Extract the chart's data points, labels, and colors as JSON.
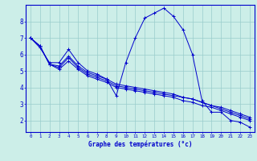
{
  "xlabel": "Graphe des températures (°c)",
  "background_color": "#cceee8",
  "grid_color": "#99cccc",
  "line_color": "#0000cc",
  "xlim": [
    -0.5,
    23.5
  ],
  "ylim": [
    1.3,
    9.0
  ],
  "xticks": [
    0,
    1,
    2,
    3,
    4,
    5,
    6,
    7,
    8,
    9,
    10,
    11,
    12,
    13,
    14,
    15,
    16,
    17,
    18,
    19,
    20,
    21,
    22,
    23
  ],
  "yticks": [
    2,
    3,
    4,
    5,
    6,
    7,
    8
  ],
  "series": [
    [
      7.0,
      6.4,
      5.5,
      5.5,
      6.3,
      5.5,
      5.0,
      4.8,
      4.5,
      3.5,
      5.5,
      7.0,
      8.2,
      8.5,
      8.8,
      8.3,
      7.5,
      6.0,
      3.2,
      2.5,
      2.5,
      2.0,
      1.9,
      1.6
    ],
    [
      7.0,
      6.5,
      5.4,
      5.2,
      5.8,
      5.2,
      4.8,
      4.6,
      4.4,
      4.1,
      4.0,
      3.9,
      3.8,
      3.7,
      3.6,
      3.5,
      3.4,
      3.3,
      3.1,
      2.9,
      2.7,
      2.5,
      2.3,
      2.1
    ],
    [
      7.0,
      6.5,
      5.4,
      5.3,
      5.9,
      5.3,
      4.9,
      4.7,
      4.5,
      4.2,
      4.1,
      4.0,
      3.9,
      3.8,
      3.7,
      3.6,
      3.4,
      3.3,
      3.1,
      2.9,
      2.8,
      2.6,
      2.4,
      2.2
    ],
    [
      7.0,
      6.5,
      5.4,
      5.1,
      5.6,
      5.1,
      4.7,
      4.5,
      4.3,
      4.0,
      3.9,
      3.8,
      3.7,
      3.6,
      3.5,
      3.4,
      3.2,
      3.1,
      2.9,
      2.8,
      2.6,
      2.4,
      2.2,
      2.0
    ]
  ]
}
